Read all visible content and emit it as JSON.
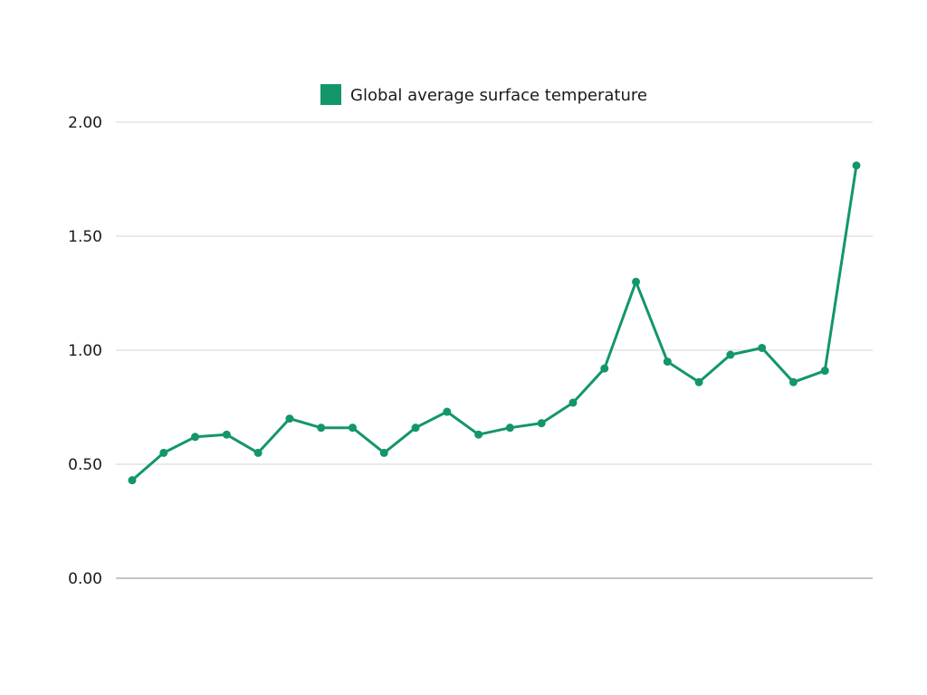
{
  "chart_data": {
    "type": "line",
    "title": "",
    "xlabel": "",
    "ylabel": "",
    "ylim": [
      0,
      2.0
    ],
    "yticks": [
      "0.00",
      "0.50",
      "1.00",
      "1.50",
      "2.00"
    ],
    "x": [
      1,
      2,
      3,
      4,
      5,
      6,
      7,
      8,
      9,
      10,
      11,
      12,
      13,
      14,
      15,
      16,
      17,
      18,
      19,
      20,
      21,
      22,
      23,
      24
    ],
    "series": [
      {
        "name": "Global average surface temperature",
        "color": "#13966a",
        "values": [
          0.43,
          0.55,
          0.62,
          0.63,
          0.55,
          0.7,
          0.66,
          0.66,
          0.55,
          0.66,
          0.73,
          0.63,
          0.66,
          0.68,
          0.77,
          0.92,
          1.3,
          0.95,
          0.86,
          0.98,
          1.01,
          0.86,
          0.91,
          1.81
        ]
      }
    ],
    "grid": true,
    "legend_position": "top-center"
  }
}
